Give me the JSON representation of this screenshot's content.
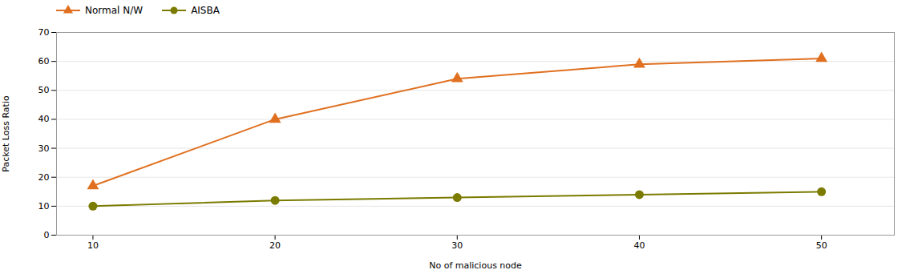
{
  "chart_data": {
    "type": "line",
    "xlabel": "No of malicious node",
    "ylabel": "Packet Loss Ratio",
    "x": [
      10,
      20,
      30,
      40,
      50
    ],
    "series": [
      {
        "name": "Normal N/W",
        "color": "#E07020",
        "marker": "triangle",
        "values": [
          17,
          40,
          54,
          59,
          61
        ]
      },
      {
        "name": "AISBA",
        "color": "#7B7B00",
        "marker": "circle",
        "values": [
          10,
          12,
          13,
          14,
          15
        ]
      }
    ],
    "xlim": [
      8,
      54
    ],
    "xticks": [
      10,
      20,
      30,
      40,
      50
    ],
    "ylim": [
      0,
      70
    ],
    "yticks": [
      0,
      10,
      20,
      30,
      40,
      50,
      60,
      70
    ],
    "grid": "y",
    "legend": "upper left"
  }
}
